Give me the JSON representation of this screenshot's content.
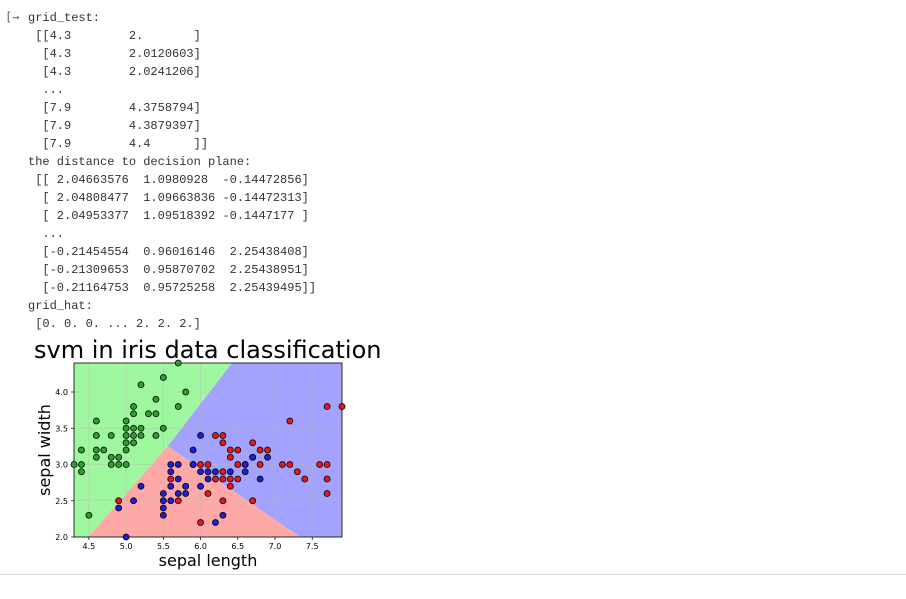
{
  "output": {
    "lines": [
      "grid_test:",
      " [[4.3        2.       ]",
      "  [4.3        2.0120603]",
      "  [4.3        2.0241206]",
      "  ...",
      "  [7.9        4.3758794]",
      "  [7.9        4.3879397]",
      "  [7.9        4.4      ]]",
      "the distance to decision plane:",
      " [[ 2.04663576  1.0980928  -0.14472856]",
      "  [ 2.04808477  1.09663836 -0.14472313]",
      "  [ 2.04953377  1.09518392 -0.1447177 ]",
      "  ...",
      "  [-0.21454554  0.96016146  2.25438408]",
      "  [-0.21309653  0.95870702  2.25438951]",
      "  [-0.21164753  0.95725258  2.25439495]]",
      "grid_hat:",
      " [0. 0. 0. ... 2. 2. 2.]"
    ]
  },
  "chart_data": {
    "type": "scatter",
    "title": "svm in iris data classification",
    "x_label": "sepal length",
    "y_label": "sepal width",
    "xlim": [
      4.3,
      7.9
    ],
    "ylim": [
      2.0,
      4.4
    ],
    "xticks": [
      4.5,
      {
        "value": 5,
        "label": "5.0"
      },
      5.5,
      {
        "value": 6,
        "label": "6.0"
      },
      6.5,
      {
        "value": 7,
        "label": "7.0"
      },
      7.5
    ],
    "yticks": [
      {
        "value": 2,
        "label": "2.0"
      },
      2.5,
      {
        "value": 3,
        "label": "3.0"
      },
      3.5,
      {
        "value": 4,
        "label": "4.0"
      }
    ],
    "grid": true,
    "series": [
      {
        "color": "#2ca02c",
        "x": [
          4.3,
          4.4,
          4.4,
          4.4,
          4.5,
          4.6,
          4.6,
          4.6,
          4.7,
          4.6,
          4.8,
          4.8,
          4.8,
          4.9,
          4.9,
          5.0,
          5.0,
          5.0,
          5.0,
          5.0,
          5.0,
          5.1,
          5.1,
          5.1,
          5.1,
          5.1,
          5.2,
          5.2,
          5.2,
          5.3,
          5.4,
          5.4,
          5.4,
          5.5,
          5.5,
          5.7,
          5.7,
          5.8
        ],
        "values": [
          3.0,
          3.0,
          2.9,
          3.2,
          2.3,
          3.6,
          3.4,
          3.2,
          3.2,
          3.1,
          3.4,
          3.0,
          3.1,
          3.0,
          3.1,
          3.0,
          3.4,
          3.5,
          3.6,
          3.3,
          3.2,
          3.5,
          3.8,
          3.3,
          3.4,
          3.7,
          3.4,
          3.5,
          4.1,
          3.7,
          3.9,
          3.7,
          3.4,
          4.2,
          3.5,
          4.4,
          3.8,
          4.0
        ]
      },
      {
        "color": "#e31a1c",
        "x": [
          4.9,
          5.6,
          5.8,
          6.0,
          6.3,
          6.5,
          6.7,
          7.7,
          7.9,
          7.2,
          7.7,
          7.7,
          7.7,
          7.6,
          7.4,
          7.3,
          7.2,
          7.1,
          6.9,
          6.8,
          6.7,
          6.4,
          6.3,
          6.2,
          6.3,
          6.4,
          6.3,
          6.2,
          6.1,
          6.0,
          5.9,
          6.5,
          6.7,
          6.4,
          6.6,
          6.8,
          6.3,
          6.1,
          6.5,
          6.4,
          5.7
        ],
        "values": [
          2.5,
          2.8,
          2.7,
          2.2,
          2.5,
          3.0,
          2.5,
          3.8,
          3.8,
          3.6,
          2.6,
          2.8,
          3.0,
          3.0,
          2.8,
          2.9,
          3.0,
          3.0,
          3.2,
          3.2,
          3.3,
          3.2,
          3.3,
          3.4,
          3.4,
          2.8,
          2.8,
          2.8,
          3.0,
          3.0,
          3.0,
          3.2,
          3.1,
          3.1,
          3.0,
          3.0,
          2.9,
          2.6,
          2.8,
          2.7,
          2.5
        ]
      },
      {
        "color": "#1f1fd0",
        "x": [
          5.0,
          4.9,
          5.1,
          5.2,
          5.5,
          5.5,
          5.5,
          5.5,
          5.6,
          5.6,
          5.7,
          5.6,
          5.6,
          5.7,
          5.7,
          5.8,
          5.9,
          6.0,
          6.0,
          6.1,
          6.1,
          6.2,
          6.3,
          6.2,
          6.4,
          6.6,
          6.6,
          6.7,
          6.8,
          6.9,
          5.8,
          6.0,
          5.9
        ],
        "values": [
          2.0,
          2.4,
          2.5,
          2.7,
          2.4,
          2.3,
          2.5,
          2.6,
          2.5,
          2.7,
          2.6,
          2.9,
          3.0,
          3.0,
          2.8,
          2.6,
          3.2,
          3.4,
          2.9,
          2.8,
          2.9,
          2.9,
          2.3,
          2.2,
          2.9,
          2.9,
          3.0,
          3.1,
          2.8,
          3.1,
          2.7,
          2.7,
          3.0
        ]
      }
    ]
  }
}
